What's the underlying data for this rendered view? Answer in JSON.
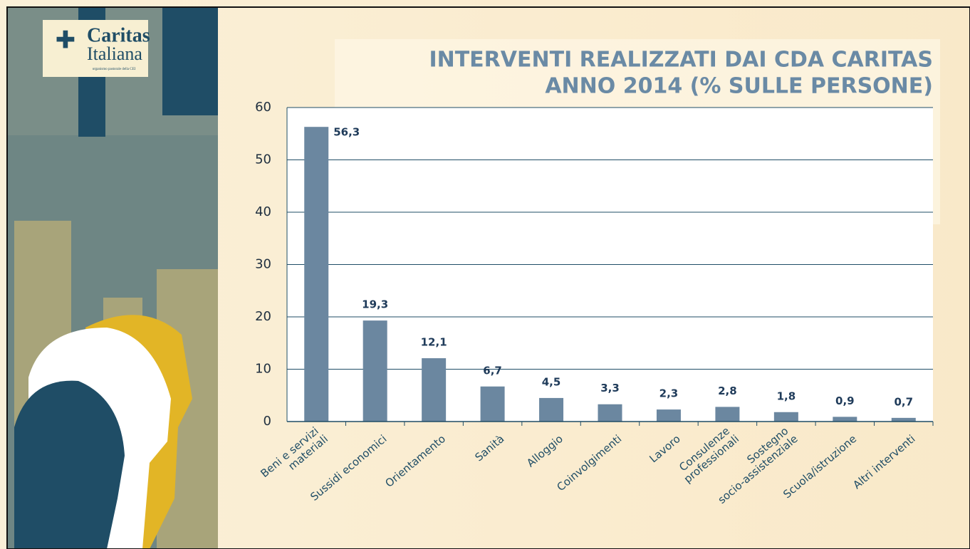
{
  "logo": {
    "name": "Caritas",
    "subname": "Italiana",
    "tagline": "organismo pastorale della CEI"
  },
  "chart_data": {
    "type": "bar",
    "title": [
      "INTERVENTI REALIZZATI DAI CDA CARITAS",
      "ANNO 2014 (% SULLE PERSONE)"
    ],
    "categories": [
      "Beni e servizi\nmateriali",
      "Sussidi economici",
      "Orientamento",
      "Sanità",
      "Alloggio",
      "Coinvolgimenti",
      "Lavoro",
      "Consulenze\nprofessionali",
      "Sostegno\nsocio-assistenziale",
      "Scuola/istruzione",
      "Altri interventi"
    ],
    "values": [
      56.3,
      19.3,
      12.1,
      6.7,
      4.5,
      3.3,
      2.3,
      2.8,
      1.8,
      0.9,
      0.7
    ],
    "value_labels": [
      "56,3",
      "19,3",
      "12,1",
      "6,7",
      "4,5",
      "3,3",
      "2,3",
      "2,8",
      "1,8",
      "0,9",
      "0,7"
    ],
    "color": "#6b87a0",
    "ylim": [
      0,
      60
    ],
    "yticks": [
      0,
      10,
      20,
      30,
      40,
      50,
      60
    ],
    "grid": true
  }
}
